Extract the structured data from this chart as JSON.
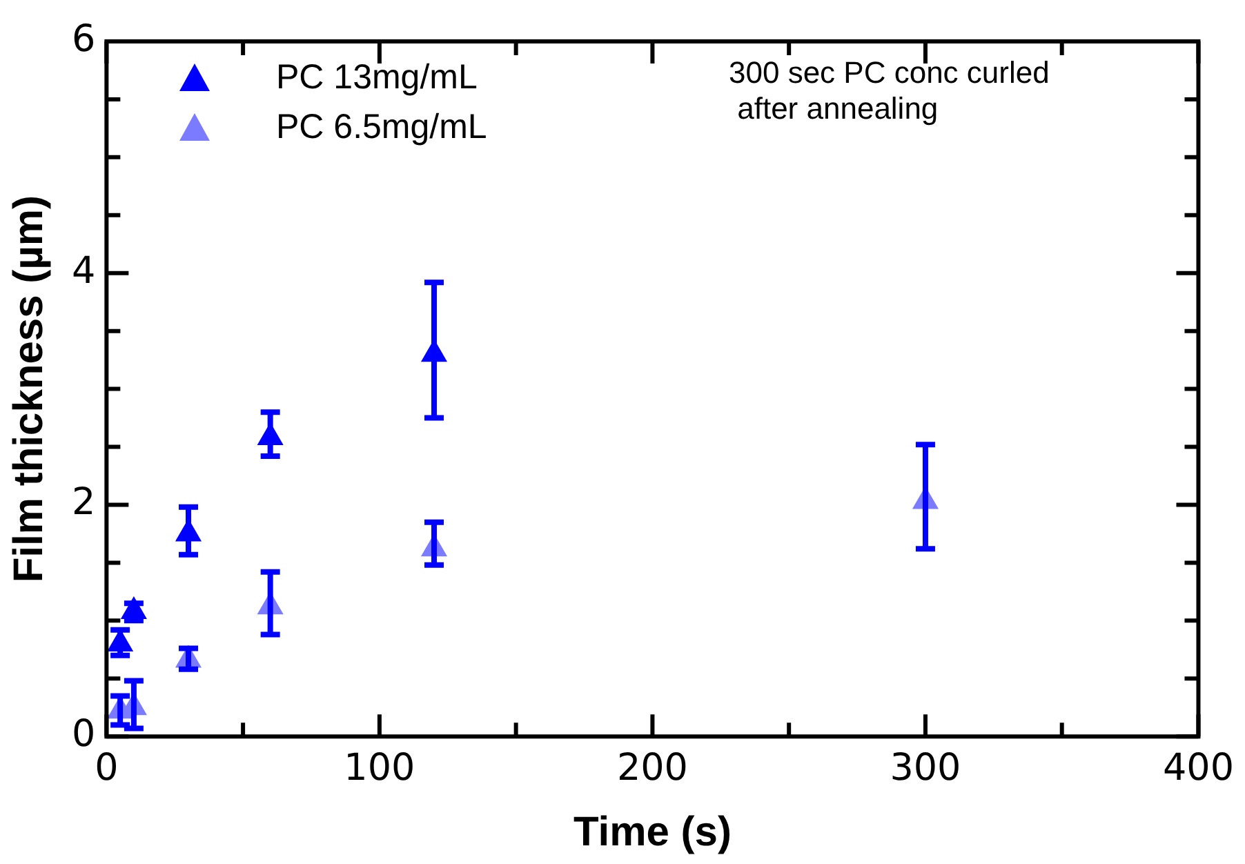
{
  "chart_data": {
    "type": "scatter",
    "xlabel": "Time (s)",
    "ylabel": "Film thickness (µm)",
    "xlim": [
      0,
      400
    ],
    "xticks": [
      0,
      {
        "value": 50,
        "label": null
      },
      100,
      {
        "value": 150,
        "label": null
      },
      200,
      {
        "value": 250,
        "label": null
      },
      300,
      {
        "value": 350,
        "label": null
      },
      400
    ],
    "ylim": [
      0,
      6
    ],
    "yticks": [
      0,
      {
        "value": 0.5,
        "label": null
      },
      {
        "value": 1,
        "label": null
      },
      {
        "value": 1.5,
        "label": null
      },
      2,
      {
        "value": 2.5,
        "label": null
      },
      {
        "value": 3,
        "label": null
      },
      {
        "value": 3.5,
        "label": null
      },
      4,
      {
        "value": 4.5,
        "label": null
      },
      {
        "value": 5,
        "label": null
      },
      {
        "value": 5.5,
        "label": null
      },
      6
    ],
    "grid": false,
    "legend": "top left",
    "marker": "triangle",
    "annotations": [
      "300 sec PC conc curled\n after annealing"
    ],
    "series": [
      {
        "name": "PC 13mg/mL",
        "color": "#0000ff",
        "x": [
          5,
          10,
          30,
          60,
          120
        ],
        "values": [
          0.8,
          1.08,
          1.75,
          2.58,
          3.3
        ],
        "errors": [
          [
            0.7,
            0.92
          ],
          [
            1,
            1.15
          ],
          [
            1.57,
            1.98
          ],
          [
            2.42,
            2.8
          ],
          [
            2.75,
            3.92
          ]
        ]
      },
      {
        "name": "PC 6.5mg/mL",
        "color": "#7b7bff",
        "x": [
          5,
          10,
          30,
          60,
          120,
          300
        ],
        "values": [
          0.22,
          0.25,
          0.66,
          1.12,
          1.62,
          2.03
        ],
        "errors": [
          [
            0.1,
            0.35
          ],
          [
            0.07,
            0.48
          ],
          [
            0.58,
            0.76
          ],
          [
            0.88,
            1.42
          ],
          [
            1.48,
            1.85
          ],
          [
            1.62,
            2.52
          ]
        ]
      }
    ]
  }
}
